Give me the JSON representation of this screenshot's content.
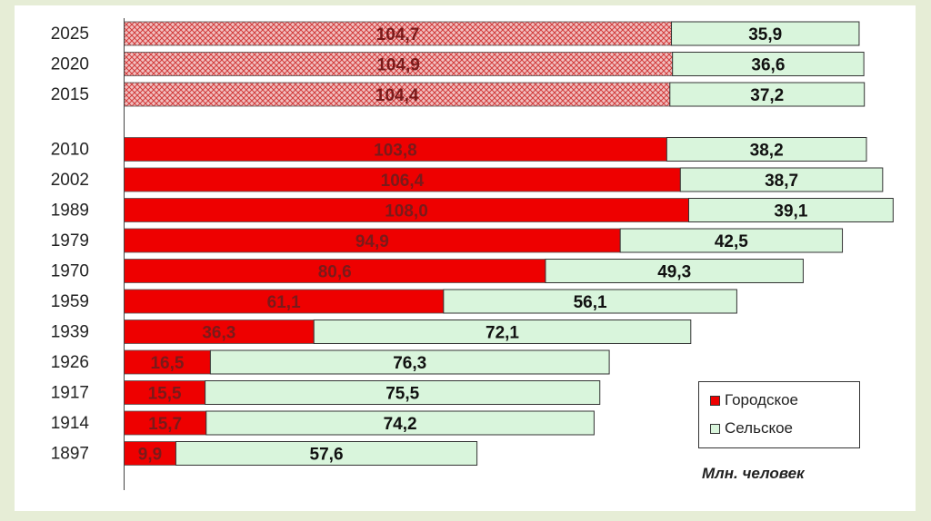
{
  "chart_data": {
    "type": "bar",
    "orientation": "horizontal",
    "stacked": true,
    "categories": [
      "2025",
      "2020",
      "2015",
      "2010",
      "2002",
      "1989",
      "1979",
      "1970",
      "1959",
      "1939",
      "1926",
      "1917",
      "1914",
      "1897"
    ],
    "series": [
      {
        "name": "Городское",
        "color": "#ee0000",
        "values": [
          104.7,
          104.9,
          104.4,
          103.8,
          106.4,
          108.0,
          94.9,
          80.6,
          61.1,
          36.3,
          16.5,
          15.5,
          15.7,
          9.9
        ],
        "labels": [
          "104,7",
          "104,9",
          "104,4",
          "103,8",
          "106,4",
          "108,0",
          "94,9",
          "80,6",
          "61,1",
          "36,3",
          "16,5",
          "15,5",
          "15,7",
          "9,9"
        ]
      },
      {
        "name": "Сельское",
        "color": "#d9f5dc",
        "values": [
          35.9,
          36.6,
          37.2,
          38.2,
          38.7,
          39.1,
          42.5,
          49.3,
          56.1,
          72.1,
          76.3,
          75.5,
          74.2,
          57.6
        ],
        "labels": [
          "35,9",
          "36,6",
          "37,2",
          "38,2",
          "38,7",
          "39,1",
          "42,5",
          "49,3",
          "56,1",
          "72,1",
          "76,3",
          "75,5",
          "74,2",
          "57,6"
        ]
      }
    ],
    "forecast_categories": [
      "2025",
      "2020",
      "2015"
    ],
    "forecast_fill": "crosshatch",
    "unit_label": "Млн. человек",
    "legend_position": "bottom-right",
    "grid": false
  }
}
